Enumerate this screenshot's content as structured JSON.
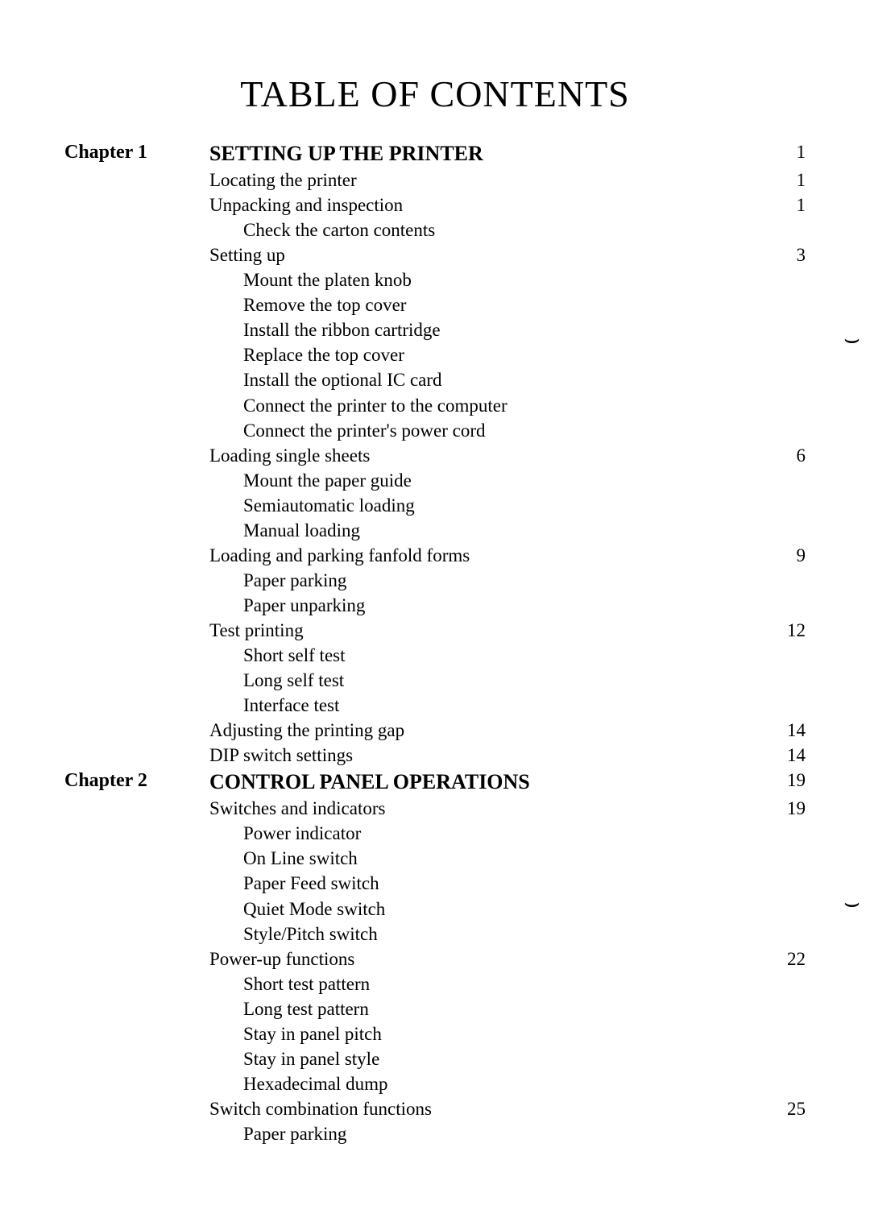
{
  "title": "TABLE OF CONTENTS",
  "chapters": [
    {
      "label": "Chapter 1",
      "heading": "SETTING UP THE PRINTER",
      "heading_page": "1",
      "lines": [
        {
          "text": "Locating the printer",
          "page": "1",
          "indent": 1
        },
        {
          "text": "Unpacking and inspection",
          "page": "1",
          "indent": 1
        },
        {
          "text": "Check the carton contents",
          "page": "",
          "indent": 2
        },
        {
          "text": "Setting up",
          "page": "3",
          "indent": 1
        },
        {
          "text": "Mount the platen knob",
          "page": "",
          "indent": 2
        },
        {
          "text": "Remove the top cover",
          "page": "",
          "indent": 2
        },
        {
          "text": "Install the ribbon cartridge",
          "page": "",
          "indent": 2
        },
        {
          "text": "Replace the top cover",
          "page": "",
          "indent": 2
        },
        {
          "text": "Install the optional IC card",
          "page": "",
          "indent": 2
        },
        {
          "text": "Connect the printer to the computer",
          "page": "",
          "indent": 2
        },
        {
          "text": "Connect the printer's power cord",
          "page": "",
          "indent": 2
        },
        {
          "text": "Loading single sheets",
          "page": "6",
          "indent": 1
        },
        {
          "text": "Mount the paper guide",
          "page": "",
          "indent": 2
        },
        {
          "text": "Semiautomatic loading",
          "page": "",
          "indent": 2
        },
        {
          "text": "Manual loading",
          "page": "",
          "indent": 2
        },
        {
          "text": "Loading and parking fanfold forms",
          "page": "9",
          "indent": 1
        },
        {
          "text": "Paper parking",
          "page": "",
          "indent": 2
        },
        {
          "text": "Paper unparking",
          "page": "",
          "indent": 2
        },
        {
          "text": "Test printing",
          "page": "12",
          "indent": 1
        },
        {
          "text": "Short self test",
          "page": "",
          "indent": 2
        },
        {
          "text": "Long self test",
          "page": "",
          "indent": 2
        },
        {
          "text": "Interface test",
          "page": "",
          "indent": 2
        },
        {
          "text": "Adjusting the printing gap",
          "page": "14",
          "indent": 1
        },
        {
          "text": "DIP switch settings",
          "page": "14",
          "indent": 1
        }
      ]
    },
    {
      "label": "Chapter 2",
      "heading": "CONTROL PANEL OPERATIONS",
      "heading_page": "19",
      "lines": [
        {
          "text": "Switches and indicators",
          "page": "19",
          "indent": 1
        },
        {
          "text": "Power indicator",
          "page": "",
          "indent": 2
        },
        {
          "text": "On Line switch",
          "page": "",
          "indent": 2
        },
        {
          "text": "Paper Feed switch",
          "page": "",
          "indent": 2
        },
        {
          "text": "Quiet Mode switch",
          "page": "",
          "indent": 2
        },
        {
          "text": "Style/Pitch switch",
          "page": "",
          "indent": 2
        },
        {
          "text": "Power-up functions",
          "page": "22",
          "indent": 1
        },
        {
          "text": "Short test pattern",
          "page": "",
          "indent": 2
        },
        {
          "text": "Long test pattern",
          "page": "",
          "indent": 2
        },
        {
          "text": "Stay in panel pitch",
          "page": "",
          "indent": 2
        },
        {
          "text": "Stay in panel style",
          "page": "",
          "indent": 2
        },
        {
          "text": "Hexadecimal dump",
          "page": "",
          "indent": 2
        },
        {
          "text": "Switch combination functions",
          "page": "25",
          "indent": 1
        },
        {
          "text": "Paper parking",
          "page": "",
          "indent": 2
        }
      ]
    }
  ],
  "binding_mark": "⌣"
}
